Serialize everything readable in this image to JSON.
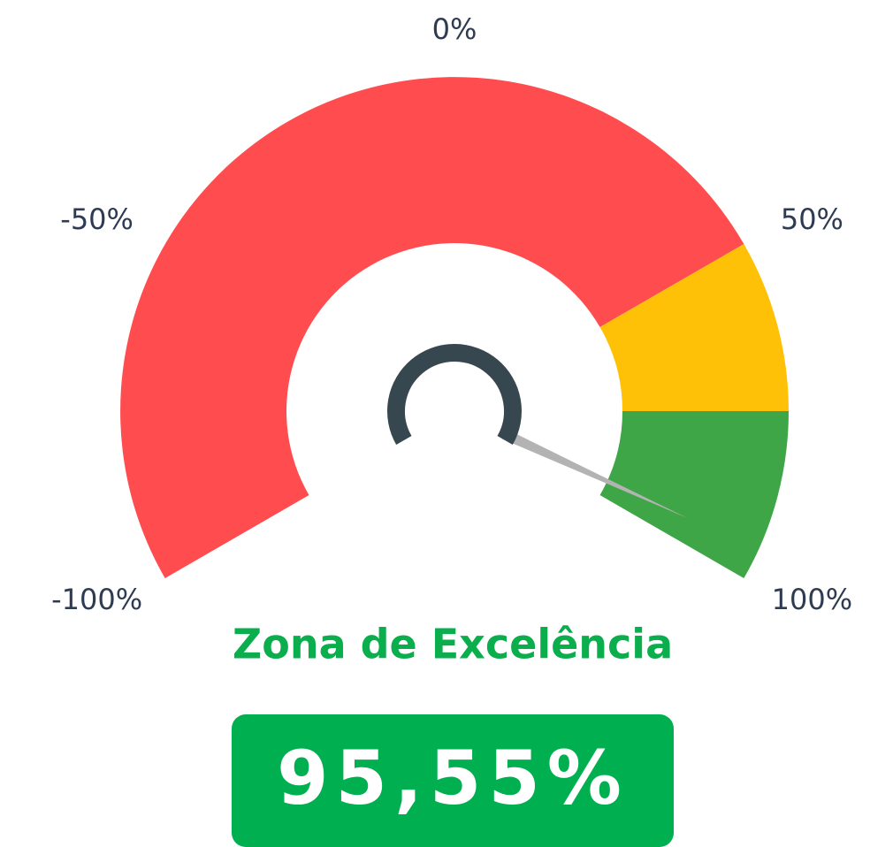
{
  "chart_data": {
    "type": "gauge",
    "title": "Zona de Excelência",
    "value": 95.55,
    "value_label": "95,55%",
    "ylim": [
      -100,
      100
    ],
    "yticks": [
      {
        "value": -100,
        "label": "-100%"
      },
      {
        "value": -50,
        "label": "-50%"
      },
      {
        "value": 0,
        "label": "0%"
      },
      {
        "value": 50,
        "label": "50%"
      },
      {
        "value": 100,
        "label": "100%"
      }
    ],
    "bands": [
      {
        "from": -100,
        "to": 50,
        "color": "#ff4d4f"
      },
      {
        "from": 50,
        "to": 75,
        "color": "#ffc107"
      },
      {
        "from": 75,
        "to": 100,
        "color": "#3fa648"
      }
    ],
    "needle_color": "#b3b3b3",
    "value_box_color": "#00b050"
  }
}
